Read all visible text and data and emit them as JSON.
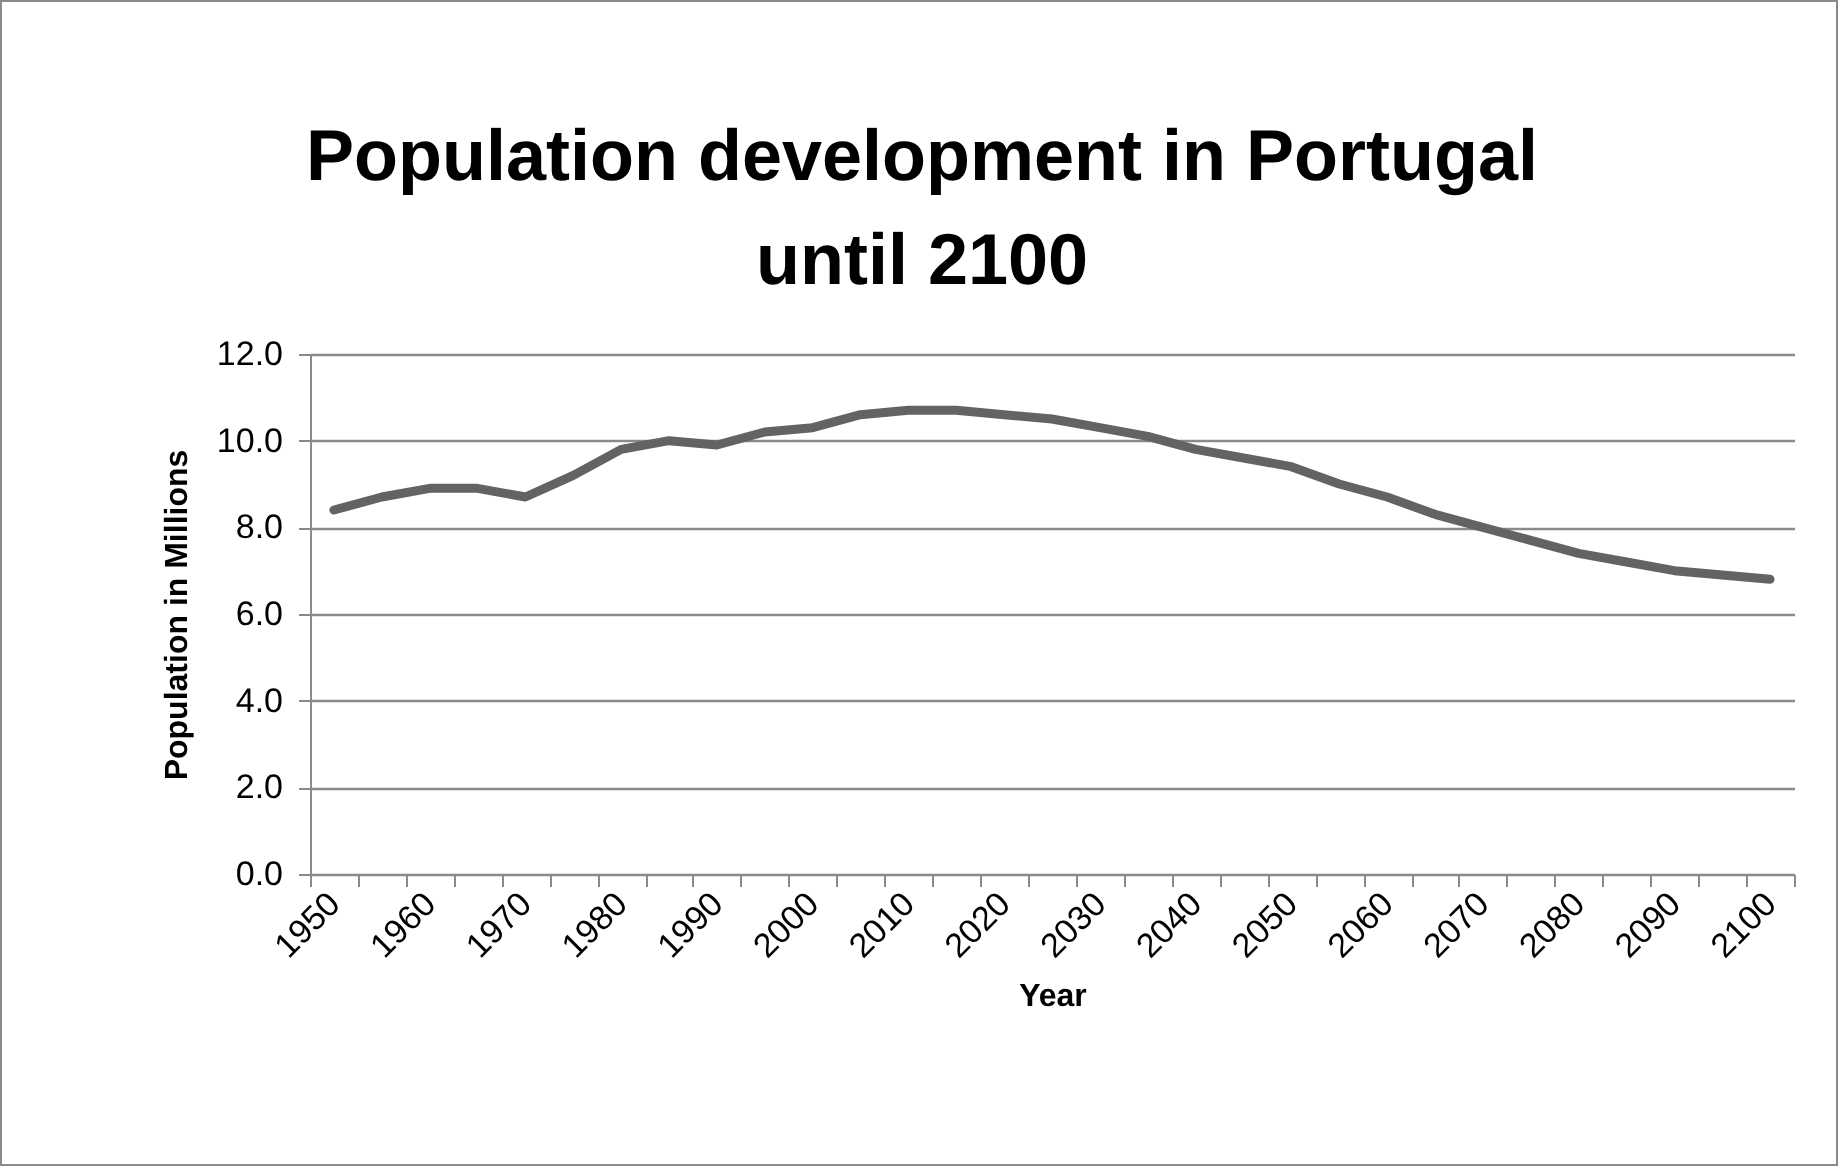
{
  "chart_data": {
    "type": "line",
    "title": "Population development in Portugal until 2100",
    "xlabel": "Year",
    "ylabel": "Population in Millions",
    "categories": [
      "1950",
      null,
      "1960",
      null,
      "1970",
      null,
      "1980",
      null,
      "1990",
      null,
      "2000",
      null,
      "2010",
      null,
      "2020",
      null,
      "2030",
      null,
      "2040",
      null,
      "2050",
      null,
      "2060",
      null,
      "2070",
      null,
      "2080",
      null,
      "2090",
      null,
      "2100"
    ],
    "series": [
      {
        "color": "#636363",
        "values": [
          8.4,
          8.7,
          8.9,
          8.9,
          8.7,
          9.2,
          9.8,
          10.0,
          9.9,
          10.2,
          10.3,
          10.6,
          10.7,
          10.7,
          10.6,
          10.5,
          10.3,
          10.1,
          9.8,
          9.6,
          9.4,
          9.0,
          8.7,
          8.3,
          8.0,
          7.7,
          7.4,
          7.2,
          7.0,
          6.9,
          6.8
        ]
      }
    ],
    "ylim": [
      0,
      12
    ],
    "yticks": [
      {
        "value": 0,
        "label": "0.0"
      },
      {
        "value": 2,
        "label": "2.0"
      },
      {
        "value": 4,
        "label": "4.0"
      },
      {
        "value": 6,
        "label": "6.0"
      },
      {
        "value": 8,
        "label": "8.0"
      },
      {
        "value": 10,
        "label": "10.0"
      },
      {
        "value": 12,
        "label": "12.0"
      }
    ],
    "grid": "y",
    "marker": "none",
    "line_style": "solid"
  }
}
